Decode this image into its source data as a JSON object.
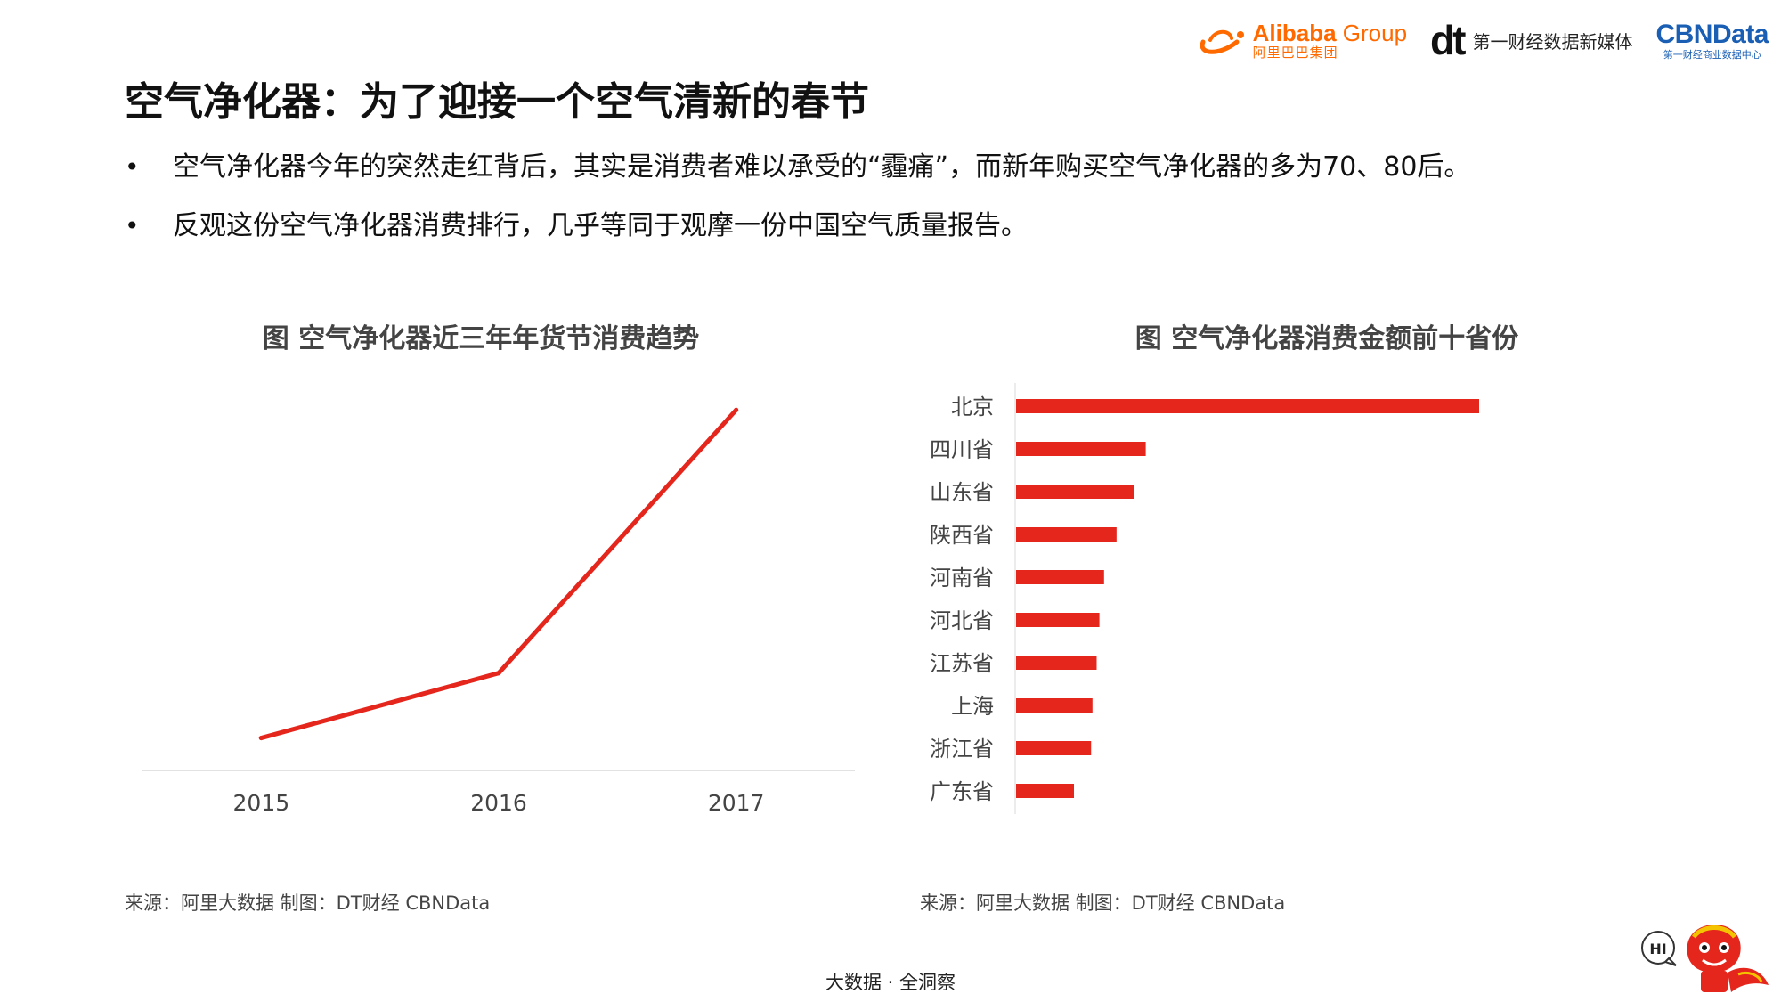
{
  "logos": {
    "alibaba_brand": "Alibaba",
    "alibaba_group": "Group",
    "alibaba_cn": "阿里巴巴集团",
    "dt_mark": "dt",
    "dt_name": "第一财经数据新媒体",
    "cbn_name": "CBNData",
    "cbn_sub": "第一财经商业数据中心"
  },
  "page_title": "空气净化器：为了迎接一个空气清新的春节",
  "bullets": [
    "空气净化器今年的突然走红背后，其实是消费者难以承受的“霾痛”，而新年购买空气净化器的多为70、80后。",
    "反观这份空气净化器消费排行，几乎等同于观摩一份中国空气质量报告。"
  ],
  "chart_data": [
    {
      "type": "line",
      "title": "图 空气净化器近三年年货节消费趋势",
      "categories": [
        "2015",
        "2016",
        "2017"
      ],
      "values": [
        9,
        27,
        100
      ],
      "ylim": [
        0,
        105
      ],
      "xlabel": "",
      "ylabel": "",
      "grid": false,
      "color": "#e5261d"
    },
    {
      "type": "bar",
      "orientation": "horizontal",
      "title": "图 空气净化器消费金额前十省份",
      "categories": [
        "北京",
        "四川省",
        "山东省",
        "陕西省",
        "河南省",
        "河北省",
        "江苏省",
        "上海",
        "浙江省",
        "广东省"
      ],
      "values": [
        100,
        28,
        25.5,
        21.7,
        19,
        18,
        17.4,
        16.5,
        16.2,
        12.5
      ],
      "xlim": [
        0,
        100
      ],
      "xlabel": "",
      "ylabel": "",
      "grid": false,
      "color": "#e5261d"
    }
  ],
  "sources": {
    "left": "来源：阿里大数据   制图：DT财经    CBNData",
    "right": "来源：阿里大数据   制图：DT财经    CBNData"
  },
  "footer": "大数据 · 全洞察",
  "mascot": {
    "speech": "HI"
  }
}
